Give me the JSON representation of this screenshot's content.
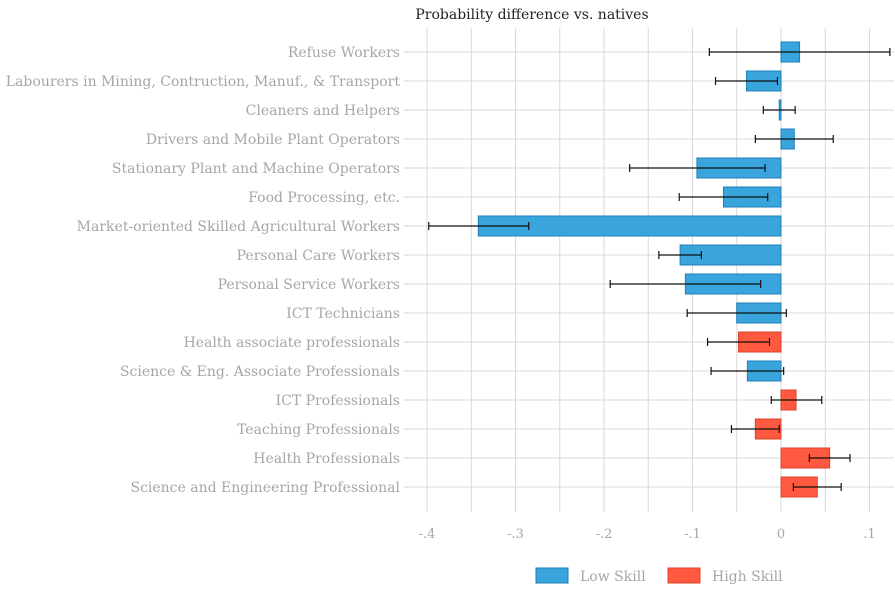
{
  "chart_data": {
    "type": "bar",
    "orientation": "horizontal",
    "title": "Probability difference vs. natives",
    "xlabel": "",
    "ylabel": "",
    "xlim": [
      -0.42,
      0.13
    ],
    "x_ticks": [
      -0.4,
      -0.3,
      -0.2,
      -0.1,
      0,
      0.1
    ],
    "x_tick_labels": [
      "-.4",
      "-.3",
      "-.2",
      "-.1",
      "0",
      ".1"
    ],
    "grid": true,
    "legend_position": "bottom-right",
    "series": [
      {
        "name": "Low Skill",
        "color": "#3aa5dd",
        "edge": "#1e7fb8"
      },
      {
        "name": "High Skill",
        "color": "#ff5a40",
        "edge": "#d8432c"
      }
    ],
    "bars": [
      {
        "label": "Refuse Workers",
        "value": 0.021,
        "ci": [
          -0.081,
          0.123
        ],
        "group": "Low Skill"
      },
      {
        "label": "Labourers in Mining, Contruction, Manuf., & Transport",
        "value": -0.039,
        "ci": [
          -0.074,
          -0.004
        ],
        "group": "Low Skill"
      },
      {
        "label": "Cleaners and Helpers",
        "value": -0.002,
        "ci": [
          -0.02,
          0.016
        ],
        "group": "Low Skill"
      },
      {
        "label": "Drivers and Mobile Plant Operators",
        "value": 0.015,
        "ci": [
          -0.029,
          0.059
        ],
        "group": "Low Skill"
      },
      {
        "label": "Stationary Plant and Machine Operators",
        "value": -0.095,
        "ci": [
          -0.171,
          -0.018
        ],
        "group": "Low Skill"
      },
      {
        "label": "Food Processing, etc.",
        "value": -0.065,
        "ci": [
          -0.115,
          -0.015
        ],
        "group": "Low Skill"
      },
      {
        "label": "Market-oriented Skilled Agricultural  Workers",
        "value": -0.342,
        "ci": [
          -0.398,
          -0.285
        ],
        "group": "Low Skill"
      },
      {
        "label": "Personal Care Workers",
        "value": -0.114,
        "ci": [
          -0.138,
          -0.09
        ],
        "group": "Low Skill"
      },
      {
        "label": "Personal Service Workers",
        "value": -0.108,
        "ci": [
          -0.193,
          -0.023
        ],
        "group": "Low Skill"
      },
      {
        "label": "ICT Technicians",
        "value": -0.05,
        "ci": [
          -0.106,
          0.006
        ],
        "group": "Low Skill"
      },
      {
        "label": "Health associate professionals",
        "value": -0.048,
        "ci": [
          -0.083,
          -0.013
        ],
        "group": "High Skill"
      },
      {
        "label": "Science & Eng. Associate Professionals",
        "value": -0.038,
        "ci": [
          -0.079,
          0.003
        ],
        "group": "Low Skill"
      },
      {
        "label": "ICT Professionals",
        "value": 0.017,
        "ci": [
          -0.011,
          0.046
        ],
        "group": "High Skill"
      },
      {
        "label": "Teaching Professionals",
        "value": -0.029,
        "ci": [
          -0.056,
          -0.002
        ],
        "group": "High Skill"
      },
      {
        "label": "Health Professionals",
        "value": 0.055,
        "ci": [
          0.032,
          0.078
        ],
        "group": "High Skill"
      },
      {
        "label": "Science and Engineering Professional",
        "value": 0.041,
        "ci": [
          0.014,
          0.068
        ],
        "group": "High Skill"
      }
    ]
  }
}
